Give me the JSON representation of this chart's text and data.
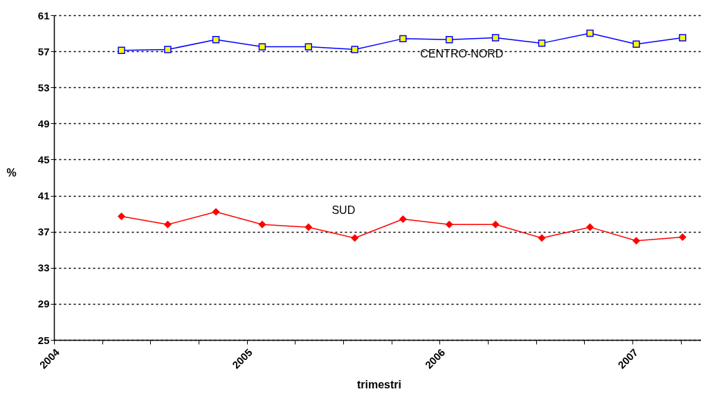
{
  "chart_data": {
    "type": "line",
    "xlabel": "trimestri",
    "ylabel": "%",
    "x": [
      2004.35,
      2004.59,
      2004.84,
      2005.08,
      2005.32,
      2005.56,
      2005.81,
      2006.05,
      2006.29,
      2006.53,
      2006.78,
      2007.02,
      2007.26
    ],
    "series": [
      {
        "name": "CENTRO-NORD",
        "color": "#0000ff",
        "marker": "square",
        "values": [
          57.1,
          57.2,
          58.3,
          57.5,
          57.5,
          57.2,
          58.4,
          58.3,
          58.5,
          57.9,
          59.0,
          57.8,
          58.5
        ]
      },
      {
        "name": "SUD",
        "color": "#ff0000",
        "marker": "diamond",
        "values": [
          38.7,
          37.8,
          39.2,
          37.8,
          37.5,
          36.3,
          38.4,
          37.8,
          37.8,
          36.3,
          37.5,
          36.0,
          36.4
        ]
      }
    ],
    "xlim": [
      2004,
      2007.37
    ],
    "xticks": [
      2004,
      {
        "value": 2004.25,
        "label": null
      },
      {
        "value": 2004.5,
        "label": null
      },
      {
        "value": 2004.75,
        "label": null
      },
      2005,
      {
        "value": 2005.25,
        "label": null
      },
      {
        "value": 2005.5,
        "label": null
      },
      {
        "value": 2005.75,
        "label": null
      },
      2006,
      {
        "value": 2006.25,
        "label": null
      },
      {
        "value": 2006.5,
        "label": null
      },
      {
        "value": 2006.75,
        "label": null
      },
      2007,
      {
        "value": 2007.25,
        "label": null
      }
    ],
    "ylim": [
      25,
      61
    ],
    "yticks": [
      25,
      29,
      33,
      37,
      41,
      45,
      49,
      53,
      57,
      61
    ],
    "grid": "y",
    "line_style": "solid"
  }
}
